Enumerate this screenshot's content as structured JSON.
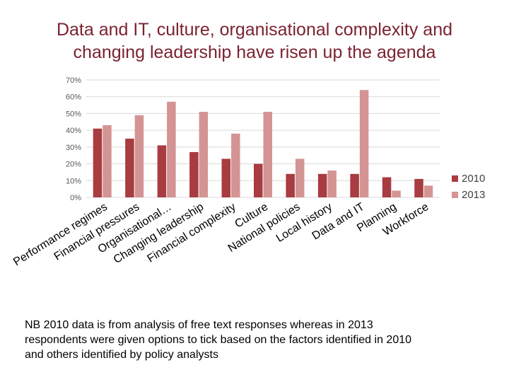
{
  "slide": {
    "title_line1": "Data and IT, culture, organisational complexity and",
    "title_line2": "changing leadership have risen up the agenda",
    "note_line1": "NB  2010 data is from analysis of free text responses whereas in 2013",
    "note_line2": "respondents were given options to tick based on the factors identified in 2010",
    "note_line3": "and others identified by policy analysts"
  },
  "colors": {
    "title": "#7b2331",
    "series_2010": "#a83c40",
    "series_2013": "#d49494",
    "grid": "#d9d9d9",
    "axis_text": "#595959"
  },
  "chart_data": {
    "type": "bar",
    "categories": [
      "Performance regimes",
      "Financial pressures",
      "Organisational…",
      "Changing leadership",
      "Financial complexity",
      "Culture",
      "National policies",
      "Local history",
      "Data and IT",
      "Planning",
      "Workforce"
    ],
    "series": [
      {
        "name": "2010",
        "values": [
          41,
          35,
          31,
          27,
          23,
          20,
          14,
          14,
          14,
          12,
          11
        ]
      },
      {
        "name": "2013",
        "values": [
          43,
          49,
          57,
          51,
          38,
          51,
          23,
          16,
          64,
          4,
          7
        ]
      }
    ],
    "ylim": [
      0,
      70
    ],
    "yticks": [
      0,
      10,
      20,
      30,
      40,
      50,
      60,
      70
    ],
    "ytick_labels": [
      "0%",
      "10%",
      "20%",
      "30%",
      "40%",
      "50%",
      "60%",
      "70%"
    ],
    "grid": true,
    "legend_position": "right"
  }
}
